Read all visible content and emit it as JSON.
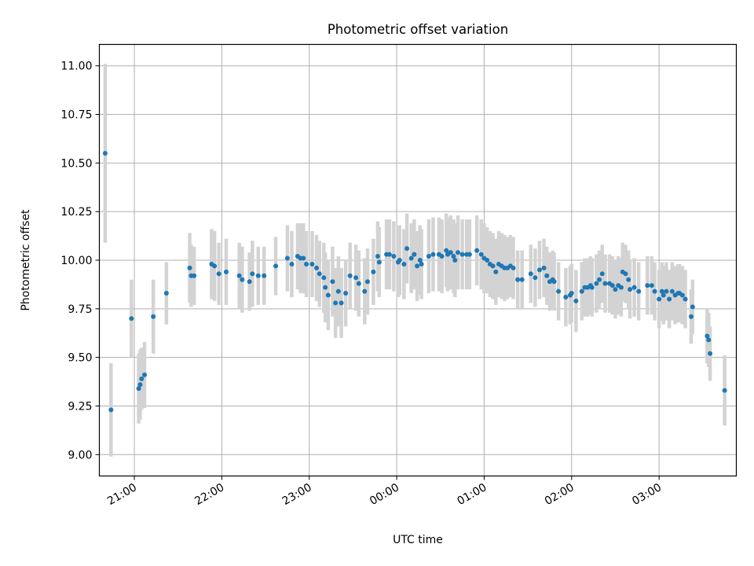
{
  "chart_data": {
    "type": "scatter",
    "title": "Photometric offset variation",
    "xlabel": "UTC time",
    "ylabel": "Photometric offset",
    "date": "2021-01-01",
    "x_ticks": [
      "21:00",
      "22:00",
      "23:00",
      "00:00",
      "01:00",
      "02:00",
      "03:00"
    ],
    "y_ticks": [
      "9.00",
      "9.25",
      "9.50",
      "9.75",
      "10.00",
      "10.25",
      "10.50",
      "10.75",
      "11.00"
    ],
    "xlim": [
      "2021-01-01T20:36",
      "2021-01-02T03:53"
    ],
    "ylim": [
      8.89,
      11.11
    ],
    "grid": true,
    "colors": {
      "marker": "#1f77b4",
      "errorbar": "#d3d3d3",
      "grid": "#b0b0b0",
      "axes": "#000000"
    },
    "series": [
      {
        "points": [
          [
            "20:40",
            10.55,
            0.46
          ],
          [
            "20:44",
            9.23,
            0.24
          ],
          [
            "20:58",
            9.7,
            0.2
          ],
          [
            "21:03",
            9.34,
            0.18
          ],
          [
            "21:04",
            9.36,
            0.18
          ],
          [
            "21:05",
            9.39,
            0.16
          ],
          [
            "21:07",
            9.41,
            0.17
          ],
          [
            "21:13",
            9.71,
            0.19
          ],
          [
            "21:22",
            9.83,
            0.16
          ],
          [
            "21:38",
            9.96,
            0.18
          ],
          [
            "21:39",
            9.92,
            0.16
          ],
          [
            "21:41",
            9.92,
            0.15
          ],
          [
            "21:53",
            9.98,
            0.18
          ],
          [
            "21:55",
            9.97,
            0.18
          ],
          [
            "21:58",
            9.93,
            0.16
          ],
          [
            "22:03",
            9.94,
            0.17
          ],
          [
            "22:12",
            9.92,
            0.17
          ],
          [
            "22:14",
            9.9,
            0.17
          ],
          [
            "22:19",
            9.89,
            0.15
          ],
          [
            "22:21",
            9.93,
            0.17
          ],
          [
            "22:25",
            9.92,
            0.15
          ],
          [
            "22:29",
            9.92,
            0.15
          ],
          [
            "22:37",
            9.97,
            0.15
          ],
          [
            "22:45",
            10.01,
            0.17
          ],
          [
            "22:48",
            9.98,
            0.17
          ],
          [
            "22:52",
            10.02,
            0.17
          ],
          [
            "22:54",
            10.01,
            0.18
          ],
          [
            "22:56",
            10.01,
            0.18
          ],
          [
            "22:58",
            9.98,
            0.17
          ],
          [
            "23:02",
            9.98,
            0.17
          ],
          [
            "23:05",
            9.96,
            0.17
          ],
          [
            "23:07",
            9.93,
            0.17
          ],
          [
            "23:10",
            9.91,
            0.18
          ],
          [
            "23:11",
            9.86,
            0.18
          ],
          [
            "23:13",
            9.82,
            0.18
          ],
          [
            "23:16",
            9.89,
            0.18
          ],
          [
            "23:18",
            9.78,
            0.18
          ],
          [
            "23:20",
            9.84,
            0.18
          ],
          [
            "23:22",
            9.78,
            0.18
          ],
          [
            "23:25",
            9.83,
            0.17
          ],
          [
            "23:28",
            9.92,
            0.17
          ],
          [
            "23:32",
            9.91,
            0.17
          ],
          [
            "23:34",
            9.88,
            0.17
          ],
          [
            "23:38",
            9.84,
            0.17
          ],
          [
            "23:40",
            9.89,
            0.17
          ],
          [
            "23:44",
            9.94,
            0.17
          ],
          [
            "23:47",
            10.02,
            0.18
          ],
          [
            "23:48",
            9.99,
            0.18
          ],
          [
            "23:53",
            10.03,
            0.18
          ],
          [
            "23:55",
            10.03,
            0.18
          ],
          [
            "23:58",
            10.02,
            0.18
          ],
          [
            "00:01",
            9.99,
            0.18
          ],
          [
            "00:02",
            10.0,
            0.18
          ],
          [
            "00:05",
            9.98,
            0.18
          ],
          [
            "00:07",
            10.06,
            0.18
          ],
          [
            "00:10",
            10.01,
            0.18
          ],
          [
            "00:12",
            10.03,
            0.18
          ],
          [
            "00:14",
            9.97,
            0.18
          ],
          [
            "00:16",
            10.0,
            0.18
          ],
          [
            "00:17",
            9.98,
            0.18
          ],
          [
            "00:22",
            10.02,
            0.19
          ],
          [
            "00:25",
            10.03,
            0.19
          ],
          [
            "00:29",
            10.03,
            0.19
          ],
          [
            "00:31",
            10.02,
            0.19
          ],
          [
            "00:34",
            10.05,
            0.19
          ],
          [
            "00:35",
            10.03,
            0.19
          ],
          [
            "00:37",
            10.04,
            0.19
          ],
          [
            "00:39",
            10.02,
            0.19
          ],
          [
            "00:40",
            10.0,
            0.19
          ],
          [
            "00:42",
            10.04,
            0.19
          ],
          [
            "00:45",
            10.03,
            0.18
          ],
          [
            "00:48",
            10.03,
            0.18
          ],
          [
            "00:50",
            10.03,
            0.18
          ],
          [
            "00:55",
            10.05,
            0.18
          ],
          [
            "00:58",
            10.03,
            0.18
          ],
          [
            "01:00",
            10.01,
            0.18
          ],
          [
            "01:02",
            10.0,
            0.17
          ],
          [
            "01:04",
            9.98,
            0.17
          ],
          [
            "01:06",
            9.97,
            0.17
          ],
          [
            "01:08",
            9.94,
            0.17
          ],
          [
            "01:10",
            9.98,
            0.17
          ],
          [
            "01:12",
            9.97,
            0.17
          ],
          [
            "01:14",
            9.96,
            0.17
          ],
          [
            "01:16",
            9.96,
            0.16
          ],
          [
            "01:18",
            9.97,
            0.16
          ],
          [
            "01:20",
            9.96,
            0.16
          ],
          [
            "01:23",
            9.9,
            0.15
          ],
          [
            "01:26",
            9.9,
            0.15
          ],
          [
            "01:32",
            9.93,
            0.15
          ],
          [
            "01:35",
            9.91,
            0.15
          ],
          [
            "01:38",
            9.95,
            0.15
          ],
          [
            "01:41",
            9.96,
            0.15
          ],
          [
            "01:43",
            9.92,
            0.15
          ],
          [
            "01:45",
            9.89,
            0.15
          ],
          [
            "01:47",
            9.9,
            0.15
          ],
          [
            "01:48",
            9.89,
            0.15
          ],
          [
            "01:51",
            9.84,
            0.15
          ],
          [
            "01:56",
            9.81,
            0.15
          ],
          [
            "01:59",
            9.82,
            0.15
          ],
          [
            "02:00",
            9.83,
            0.15
          ],
          [
            "02:03",
            9.79,
            0.16
          ],
          [
            "02:07",
            9.84,
            0.15
          ],
          [
            "02:09",
            9.86,
            0.15
          ],
          [
            "02:11",
            9.86,
            0.15
          ],
          [
            "02:13",
            9.87,
            0.15
          ],
          [
            "02:14",
            9.86,
            0.15
          ],
          [
            "02:17",
            9.88,
            0.15
          ],
          [
            "02:19",
            9.9,
            0.15
          ],
          [
            "02:21",
            9.93,
            0.15
          ],
          [
            "02:23",
            9.88,
            0.15
          ],
          [
            "02:26",
            9.88,
            0.15
          ],
          [
            "02:28",
            9.87,
            0.15
          ],
          [
            "02:30",
            9.85,
            0.15
          ],
          [
            "02:32",
            9.87,
            0.15
          ],
          [
            "02:34",
            9.86,
            0.15
          ],
          [
            "02:35",
            9.94,
            0.15
          ],
          [
            "02:37",
            9.93,
            0.15
          ],
          [
            "02:39",
            9.9,
            0.15
          ],
          [
            "02:40",
            9.85,
            0.15
          ],
          [
            "02:43",
            9.86,
            0.15
          ],
          [
            "02:46",
            9.84,
            0.15
          ],
          [
            "02:52",
            9.87,
            0.15
          ],
          [
            "02:55",
            9.87,
            0.15
          ],
          [
            "02:57",
            9.84,
            0.15
          ],
          [
            "03:00",
            9.8,
            0.15
          ],
          [
            "03:02",
            9.84,
            0.15
          ],
          [
            "03:03",
            9.82,
            0.15
          ],
          [
            "03:05",
            9.84,
            0.15
          ],
          [
            "03:07",
            9.8,
            0.15
          ],
          [
            "03:09",
            9.84,
            0.15
          ],
          [
            "03:11",
            9.82,
            0.15
          ],
          [
            "03:13",
            9.83,
            0.15
          ],
          [
            "03:14",
            9.83,
            0.15
          ],
          [
            "03:16",
            9.82,
            0.15
          ],
          [
            "03:18",
            9.8,
            0.15
          ],
          [
            "03:22",
            9.71,
            0.14
          ],
          [
            "03:23",
            9.76,
            0.14
          ],
          [
            "03:33",
            9.61,
            0.14
          ],
          [
            "03:34",
            9.59,
            0.14
          ],
          [
            "03:35",
            9.52,
            0.14
          ],
          [
            "03:45",
            9.33,
            0.18
          ]
        ]
      }
    ]
  }
}
